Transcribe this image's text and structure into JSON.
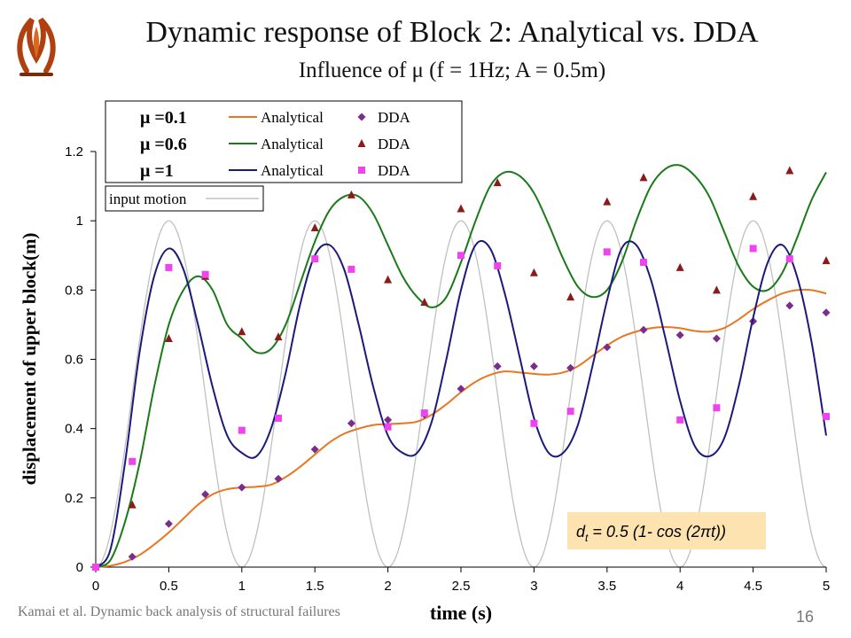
{
  "slide": {
    "title": "Dynamic response of Block 2: Analytical vs. DDA",
    "subtitle": "Influence of μ (f = 1Hz; A = 0.5m)",
    "footer": "Kamai et al. Dynamic back analysis of structural failures",
    "page_number": "16",
    "logo_icon": "institution-logo-icon"
  },
  "chart_data": {
    "type": "line",
    "xlabel": "time (s)",
    "ylabel": "displacement of upper block(m)",
    "xlim": [
      0,
      5
    ],
    "ylim": [
      0,
      1.2
    ],
    "x_ticks": [
      "0",
      "0.5",
      "1",
      "1.5",
      "2",
      "2.5",
      "3",
      "3.5",
      "4",
      "4.5",
      "5"
    ],
    "y_ticks": [
      "0",
      "0.2",
      "0.4",
      "0.6",
      "0.8",
      "1",
      "1.2"
    ],
    "grid": false,
    "legend_position": "top-left",
    "legend_rows": [
      {
        "mu_label": "μ =0.1",
        "line_label": "Analytical",
        "marker_label": "DDA"
      },
      {
        "mu_label": "μ =0.6",
        "line_label": "Analytical",
        "marker_label": "DDA"
      },
      {
        "mu_label": "μ =1",
        "line_label": "Analytical",
        "marker_label": "DDA"
      }
    ],
    "input_legend_label": "input motion",
    "annotation": {
      "d": "d",
      "sub": "t",
      "rest": " = 0.5 (1- cos (2πt))"
    },
    "input_motion": {
      "amplitude": 0.5,
      "frequency_hz": 1,
      "color": "#c0c0c0"
    },
    "series": [
      {
        "mu": 0.1,
        "color": "#e87722",
        "marker": "diamond",
        "marker_color": "#7b2d8b",
        "analytical": {
          "x": [
            0,
            0.1,
            0.2,
            0.3,
            0.4,
            0.5,
            0.6,
            0.7,
            0.8,
            0.9,
            1.0,
            1.1,
            1.2,
            1.3,
            1.4,
            1.5,
            1.6,
            1.7,
            1.8,
            1.9,
            2.0,
            2.1,
            2.2,
            2.3,
            2.4,
            2.5,
            2.6,
            2.7,
            2.8,
            2.9,
            3.0,
            3.1,
            3.2,
            3.3,
            3.4,
            3.5,
            3.6,
            3.7,
            3.8,
            3.9,
            4.0,
            4.1,
            4.2,
            4.3,
            4.4,
            4.5,
            4.6,
            4.7,
            4.8,
            4.9,
            5.0
          ],
          "y": [
            0,
            0.004,
            0.015,
            0.035,
            0.065,
            0.1,
            0.14,
            0.18,
            0.21,
            0.225,
            0.23,
            0.232,
            0.238,
            0.26,
            0.29,
            0.325,
            0.36,
            0.385,
            0.4,
            0.41,
            0.413,
            0.415,
            0.42,
            0.44,
            0.47,
            0.505,
            0.535,
            0.555,
            0.565,
            0.562,
            0.558,
            0.556,
            0.562,
            0.58,
            0.61,
            0.64,
            0.665,
            0.68,
            0.69,
            0.693,
            0.69,
            0.682,
            0.68,
            0.69,
            0.715,
            0.745,
            0.77,
            0.79,
            0.8,
            0.8,
            0.79
          ]
        },
        "dda": {
          "x": [
            0,
            0.25,
            0.5,
            0.75,
            1.0,
            1.25,
            1.5,
            1.75,
            2.0,
            2.25,
            2.5,
            2.75,
            3.0,
            3.25,
            3.5,
            3.75,
            4.0,
            4.25,
            4.5,
            4.75,
            5.0
          ],
          "y": [
            0,
            0.03,
            0.125,
            0.21,
            0.23,
            0.255,
            0.34,
            0.415,
            0.425,
            0.44,
            0.515,
            0.58,
            0.58,
            0.575,
            0.635,
            0.685,
            0.67,
            0.66,
            0.71,
            0.755,
            0.735
          ]
        }
      },
      {
        "mu": 0.6,
        "color": "#1a7a1a",
        "marker": "triangle",
        "marker_color": "#8b1a1a",
        "analytical": {
          "x": [
            0,
            0.1,
            0.2,
            0.3,
            0.4,
            0.5,
            0.6,
            0.7,
            0.8,
            0.9,
            1.0,
            1.1,
            1.2,
            1.3,
            1.4,
            1.5,
            1.6,
            1.7,
            1.8,
            1.9,
            2.0,
            2.1,
            2.2,
            2.3,
            2.4,
            2.5,
            2.6,
            2.7,
            2.8,
            2.9,
            3.0,
            3.1,
            3.2,
            3.3,
            3.4,
            3.5,
            3.6,
            3.7,
            3.8,
            3.9,
            4.0,
            4.1,
            4.2,
            4.3,
            4.4,
            4.5,
            4.6,
            4.7,
            4.8,
            4.9,
            5.0
          ],
          "y": [
            0,
            0.02,
            0.13,
            0.3,
            0.52,
            0.7,
            0.8,
            0.84,
            0.8,
            0.7,
            0.66,
            0.62,
            0.63,
            0.7,
            0.82,
            0.94,
            1.03,
            1.07,
            1.07,
            1.02,
            0.93,
            0.84,
            0.78,
            0.75,
            0.78,
            0.88,
            1.0,
            1.1,
            1.14,
            1.13,
            1.08,
            0.99,
            0.89,
            0.81,
            0.78,
            0.8,
            0.88,
            1.0,
            1.1,
            1.15,
            1.16,
            1.13,
            1.07,
            0.97,
            0.87,
            0.81,
            0.8,
            0.85,
            0.95,
            1.06,
            1.14
          ]
        },
        "dda": {
          "x": [
            0,
            0.25,
            0.5,
            0.75,
            1.0,
            1.25,
            1.5,
            1.75,
            2.0,
            2.25,
            2.5,
            2.75,
            3.0,
            3.25,
            3.5,
            3.75,
            4.0,
            4.25,
            4.5,
            4.75,
            5.0
          ],
          "y": [
            0,
            0.18,
            0.66,
            0.84,
            0.68,
            0.665,
            0.98,
            1.075,
            0.83,
            0.765,
            1.035,
            1.11,
            0.85,
            0.78,
            1.055,
            1.125,
            0.865,
            0.8,
            1.07,
            1.145,
            0.885
          ]
        }
      },
      {
        "mu": 1,
        "color": "#1a1a7a",
        "marker": "square",
        "marker_color": "#ee44ee",
        "analytical": {
          "x": [
            0,
            0.1,
            0.2,
            0.3,
            0.4,
            0.5,
            0.6,
            0.7,
            0.8,
            0.9,
            1.0,
            1.1,
            1.2,
            1.3,
            1.4,
            1.5,
            1.6,
            1.7,
            1.8,
            1.9,
            2.0,
            2.1,
            2.2,
            2.3,
            2.4,
            2.5,
            2.6,
            2.7,
            2.8,
            2.9,
            3.0,
            3.1,
            3.2,
            3.3,
            3.4,
            3.5,
            3.6,
            3.7,
            3.8,
            3.9,
            4.0,
            4.1,
            4.2,
            4.3,
            4.4,
            4.5,
            4.6,
            4.7,
            4.8,
            4.9,
            5.0
          ],
          "y": [
            0,
            0.05,
            0.3,
            0.62,
            0.84,
            0.92,
            0.86,
            0.7,
            0.52,
            0.38,
            0.33,
            0.32,
            0.4,
            0.56,
            0.76,
            0.9,
            0.93,
            0.86,
            0.7,
            0.52,
            0.38,
            0.33,
            0.33,
            0.42,
            0.6,
            0.8,
            0.93,
            0.92,
            0.79,
            0.61,
            0.43,
            0.33,
            0.33,
            0.41,
            0.58,
            0.77,
            0.92,
            0.93,
            0.83,
            0.66,
            0.48,
            0.35,
            0.32,
            0.37,
            0.52,
            0.72,
            0.88,
            0.93,
            0.84,
            0.65,
            0.38
          ]
        },
        "dda": {
          "x": [
            0,
            0.25,
            0.5,
            0.75,
            1.0,
            1.25,
            1.5,
            1.75,
            2.0,
            2.25,
            2.5,
            2.75,
            3.0,
            3.25,
            3.5,
            3.75,
            4.0,
            4.25,
            4.5,
            4.75,
            5.0
          ],
          "y": [
            0,
            0.305,
            0.865,
            0.845,
            0.395,
            0.43,
            0.89,
            0.86,
            0.405,
            0.445,
            0.9,
            0.87,
            0.415,
            0.45,
            0.91,
            0.88,
            0.425,
            0.46,
            0.92,
            0.89,
            0.435
          ]
        }
      }
    ]
  }
}
